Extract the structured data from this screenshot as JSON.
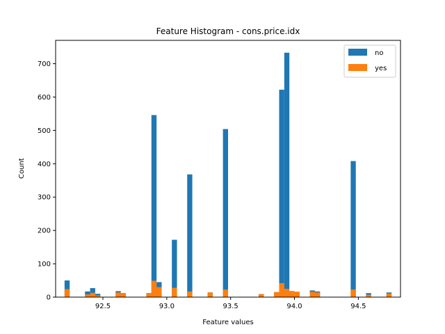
{
  "chart_data": {
    "type": "bar",
    "title": "Feature Histogram - cons.price.idx",
    "xlabel": "Feature values",
    "ylabel": "Count",
    "xlim": [
      92.13,
      94.83
    ],
    "ylim": [
      0,
      770
    ],
    "xticks": [
      92.5,
      93.0,
      93.5,
      94.0,
      94.5
    ],
    "xtick_labels": [
      "92.5",
      "93.0",
      "93.5",
      "94.0",
      "94.5"
    ],
    "yticks": [
      0,
      100,
      200,
      300,
      400,
      500,
      600,
      700
    ],
    "ytick_labels": [
      "0",
      "100",
      "200",
      "300",
      "400",
      "500",
      "600",
      "700"
    ],
    "bin_width": 0.04,
    "legend": {
      "placement": "top-right"
    },
    "series": [
      {
        "name": "no",
        "color": "#1f77b4",
        "bins": [
          {
            "x": 92.2,
            "value": 50
          },
          {
            "x": 92.36,
            "value": 17
          },
          {
            "x": 92.4,
            "value": 27
          },
          {
            "x": 92.44,
            "value": 10
          },
          {
            "x": 92.6,
            "value": 18
          },
          {
            "x": 92.64,
            "value": 12
          },
          {
            "x": 92.84,
            "value": 12
          },
          {
            "x": 92.88,
            "value": 546
          },
          {
            "x": 92.92,
            "value": 45
          },
          {
            "x": 93.04,
            "value": 172
          },
          {
            "x": 93.16,
            "value": 368
          },
          {
            "x": 93.32,
            "value": 14
          },
          {
            "x": 93.44,
            "value": 504
          },
          {
            "x": 93.72,
            "value": 9
          },
          {
            "x": 93.84,
            "value": 15
          },
          {
            "x": 93.88,
            "value": 622
          },
          {
            "x": 93.92,
            "value": 733
          },
          {
            "x": 93.96,
            "value": 18
          },
          {
            "x": 94.0,
            "value": 16
          },
          {
            "x": 94.12,
            "value": 20
          },
          {
            "x": 94.16,
            "value": 17
          },
          {
            "x": 94.44,
            "value": 408
          },
          {
            "x": 94.56,
            "value": 12
          },
          {
            "x": 94.72,
            "value": 14
          }
        ]
      },
      {
        "name": "yes",
        "color": "#ff7f0e",
        "bins": [
          {
            "x": 92.2,
            "value": 24
          },
          {
            "x": 92.36,
            "value": 8
          },
          {
            "x": 92.4,
            "value": 13
          },
          {
            "x": 92.44,
            "value": 5
          },
          {
            "x": 92.6,
            "value": 14
          },
          {
            "x": 92.64,
            "value": 12
          },
          {
            "x": 92.84,
            "value": 12
          },
          {
            "x": 92.88,
            "value": 49
          },
          {
            "x": 92.92,
            "value": 30
          },
          {
            "x": 93.04,
            "value": 28
          },
          {
            "x": 93.16,
            "value": 17
          },
          {
            "x": 93.32,
            "value": 14
          },
          {
            "x": 93.44,
            "value": 23
          },
          {
            "x": 93.72,
            "value": 9
          },
          {
            "x": 93.84,
            "value": 15
          },
          {
            "x": 93.88,
            "value": 42
          },
          {
            "x": 93.92,
            "value": 25
          },
          {
            "x": 93.96,
            "value": 18
          },
          {
            "x": 94.0,
            "value": 16
          },
          {
            "x": 94.12,
            "value": 16
          },
          {
            "x": 94.16,
            "value": 14
          },
          {
            "x": 94.44,
            "value": 23
          },
          {
            "x": 94.56,
            "value": 7
          },
          {
            "x": 94.72,
            "value": 11
          }
        ]
      }
    ]
  }
}
